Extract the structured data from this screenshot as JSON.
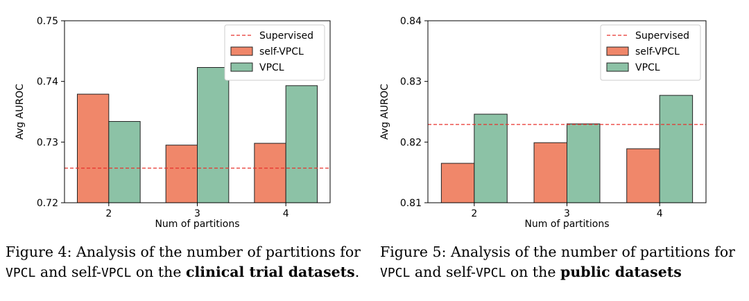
{
  "chart_data": [
    {
      "type": "bar",
      "categories": [
        "2",
        "3",
        "4"
      ],
      "series": [
        {
          "name": "self-VPCL",
          "values": [
            0.7379,
            0.7295,
            0.7298
          ],
          "color": "#f0876a"
        },
        {
          "name": "VPCL",
          "values": [
            0.7334,
            0.7423,
            0.7393
          ],
          "color": "#8cc2a6"
        }
      ],
      "reference_line": {
        "name": "Supervised",
        "value": 0.7257,
        "color": "#e8302b"
      },
      "xlabel": "Num of partitions",
      "ylabel": "Avg AUROC",
      "ylim": [
        0.72,
        0.75
      ],
      "yticks": [
        "0.72",
        "0.73",
        "0.74",
        "0.75"
      ],
      "legend": "top-right",
      "caption": {
        "figure_label": "Figure 4:",
        "line1_rest": "Analysis of the number of partitions for",
        "vpcl": "VPCL",
        "and_self": "and self-",
        "vpcl2": "VPCL",
        "on_the": "on the",
        "bold": "clinical trial datasets",
        "end": "."
      }
    },
    {
      "type": "bar",
      "categories": [
        "2",
        "3",
        "4"
      ],
      "series": [
        {
          "name": "self-VPCL",
          "values": [
            0.8165,
            0.8199,
            0.8189
          ],
          "color": "#f0876a"
        },
        {
          "name": "VPCL",
          "values": [
            0.8246,
            0.823,
            0.8277
          ],
          "color": "#8cc2a6"
        }
      ],
      "reference_line": {
        "name": "Supervised",
        "value": 0.8229,
        "color": "#e8302b"
      },
      "xlabel": "Num of partitions",
      "ylabel": "Avg AUROC",
      "ylim": [
        0.81,
        0.84
      ],
      "yticks": [
        "0.81",
        "0.82",
        "0.83",
        "0.84"
      ],
      "legend": "top-right",
      "caption": {
        "figure_label": "Figure 5:",
        "line1_rest": "Analysis of the number of partitions for",
        "vpcl": "VPCL",
        "and_self": "and self-",
        "vpcl2": "VPCL",
        "on_the": "on the",
        "bold": "public datasets",
        "end": ""
      }
    }
  ]
}
